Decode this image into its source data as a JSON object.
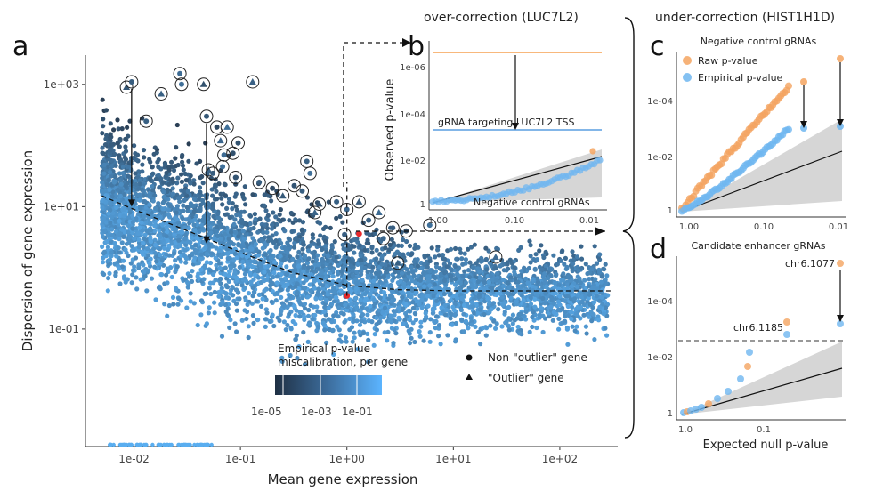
{
  "panels": {
    "a": "a",
    "b": "b",
    "c": "c",
    "d": "d"
  },
  "titles": {
    "over": "over-correction (LUC7L2)",
    "under": "under-correction (HIST1H1D)",
    "c_sub": "Negative control gRNAs",
    "d_sub": "Candidate enhancer gRNAs"
  },
  "legend": {
    "title_line1": "Empirical p-value",
    "title_line2": "miscalibration, per gene",
    "color_ticks": [
      "1e-05",
      "1e-03",
      "1e-01"
    ],
    "shape_nonoutlier": "Non-\"outlier\" gene",
    "shape_outlier": "\"Outlier\" gene",
    "raw": "Raw p-value",
    "empirical": "Empirical p-value"
  },
  "annotations": {
    "b_tss": "gRNA targeting LUC7L2 TSS",
    "b_neg": "Negative control gRNAs",
    "d_label1": "chr6.1077",
    "d_label2": "chr6.1185"
  },
  "colors": {
    "point_light": "#5aaef0",
    "point_dark": "#2a3f55",
    "raw": "#f4a460",
    "empirical": "#6fb6f0",
    "highlight": "#e8282b",
    "band": "#d3d3d3",
    "orange_line": "#f5a050",
    "blue_line": "#5a9ee0"
  },
  "chart_data": [
    {
      "id": "a",
      "type": "scatter",
      "xlabel": "Mean gene expression",
      "ylabel": "Dispersion of gene expression",
      "x_scale": "log10",
      "y_scale": "log10",
      "xlim": [
        0.0035,
        350
      ],
      "ylim": [
        0.0012,
        3000
      ],
      "x_ticks": [
        "1e-02",
        "1e-01",
        "1e+00",
        "1e+01",
        "1e+02"
      ],
      "x_tick_values": [
        0.01,
        0.1,
        1,
        10,
        100
      ],
      "y_ticks": [
        "1e+03",
        "1e+01",
        "1e-01"
      ],
      "y_tick_values": [
        1000,
        10,
        0.1
      ],
      "n_points_approx": 4500,
      "color_scale": {
        "variable": "Empirical p-value miscalibration, per gene",
        "scale": "log10",
        "range": [
          1e-05,
          1
        ]
      },
      "trend_curve": [
        [
          0.005,
          15
        ],
        [
          0.01,
          9
        ],
        [
          0.03,
          4.2
        ],
        [
          0.1,
          1.8
        ],
        [
          0.3,
          0.85
        ],
        [
          1,
          0.52
        ],
        [
          3,
          0.44
        ],
        [
          10,
          0.42
        ],
        [
          30,
          0.42
        ],
        [
          300,
          0.42
        ]
      ],
      "outlier_points": [
        [
          0.0085,
          900
        ],
        [
          0.0095,
          1100
        ],
        [
          0.013,
          250
        ],
        [
          0.018,
          700
        ],
        [
          0.028,
          1000
        ],
        [
          0.027,
          1500
        ],
        [
          0.045,
          1000
        ],
        [
          0.048,
          300
        ],
        [
          0.06,
          200
        ],
        [
          0.065,
          120
        ],
        [
          0.07,
          70
        ],
        [
          0.068,
          45
        ],
        [
          0.05,
          40
        ],
        [
          0.055,
          35
        ],
        [
          0.09,
          30
        ],
        [
          0.075,
          200
        ],
        [
          0.085,
          75
        ],
        [
          0.095,
          110
        ],
        [
          0.13,
          1100
        ],
        [
          0.15,
          25
        ],
        [
          0.2,
          20
        ],
        [
          0.25,
          15
        ],
        [
          0.32,
          22
        ],
        [
          0.38,
          18
        ],
        [
          0.5,
          8
        ],
        [
          0.42,
          55
        ],
        [
          0.45,
          35
        ],
        [
          0.55,
          11
        ],
        [
          0.8,
          12
        ],
        [
          0.95,
          3.5
        ],
        [
          1.3,
          12
        ],
        [
          1.0,
          9
        ],
        [
          1.6,
          6
        ],
        [
          2.0,
          8
        ],
        [
          2.7,
          4.5
        ],
        [
          2.2,
          3
        ],
        [
          3.0,
          1.2
        ],
        [
          3.6,
          4
        ],
        [
          6,
          5
        ],
        [
          25,
          1.5
        ]
      ],
      "highlighted_points": [
        [
          1.0,
          0.35
        ],
        [
          1.3,
          3.6
        ]
      ],
      "arrows": [
        {
          "from": [
            0.0095,
            1100
          ],
          "to": [
            0.0095,
            10
          ]
        },
        {
          "from": [
            0.048,
            300
          ],
          "to": [
            0.048,
            2.5
          ]
        }
      ]
    },
    {
      "id": "b",
      "type": "scatter",
      "xlabel": "",
      "ylabel": "Observed p-value",
      "x_ticks": [
        "1.00",
        "0.10",
        "0.01"
      ],
      "y_ticks": [
        "1e-06",
        "1e-04",
        "1e-02",
        "1"
      ],
      "hlines": [
        {
          "label": "gRNA targeting LUC7L2 TSS",
          "raw": 1e-06,
          "empirical": 0.0006
        }
      ],
      "series": [
        {
          "name": "Negative control gRNAs"
        }
      ]
    },
    {
      "id": "c",
      "type": "scatter",
      "xlabel": "",
      "ylabel": "",
      "x_ticks": [
        "1.00",
        "0.10",
        "0.01"
      ],
      "y_ticks": [
        "1e-04",
        "1e-02",
        "1"
      ],
      "series": [
        {
          "name": "Raw p-value"
        },
        {
          "name": "Empirical p-value"
        }
      ]
    },
    {
      "id": "d",
      "type": "scatter",
      "xlabel": "Expected null p-value",
      "ylabel": "",
      "x_ticks": [
        "1.0",
        "0.1"
      ],
      "y_ticks": [
        "1e-04",
        "1e-02",
        "1"
      ],
      "labeled_points": [
        {
          "label": "chr6.1077",
          "raw": 2e-06,
          "empirical": 0.0008
        },
        {
          "label": "chr6.1185",
          "raw": 0.001,
          "empirical": 0.003
        }
      ],
      "threshold_pvalue": 0.004
    }
  ]
}
